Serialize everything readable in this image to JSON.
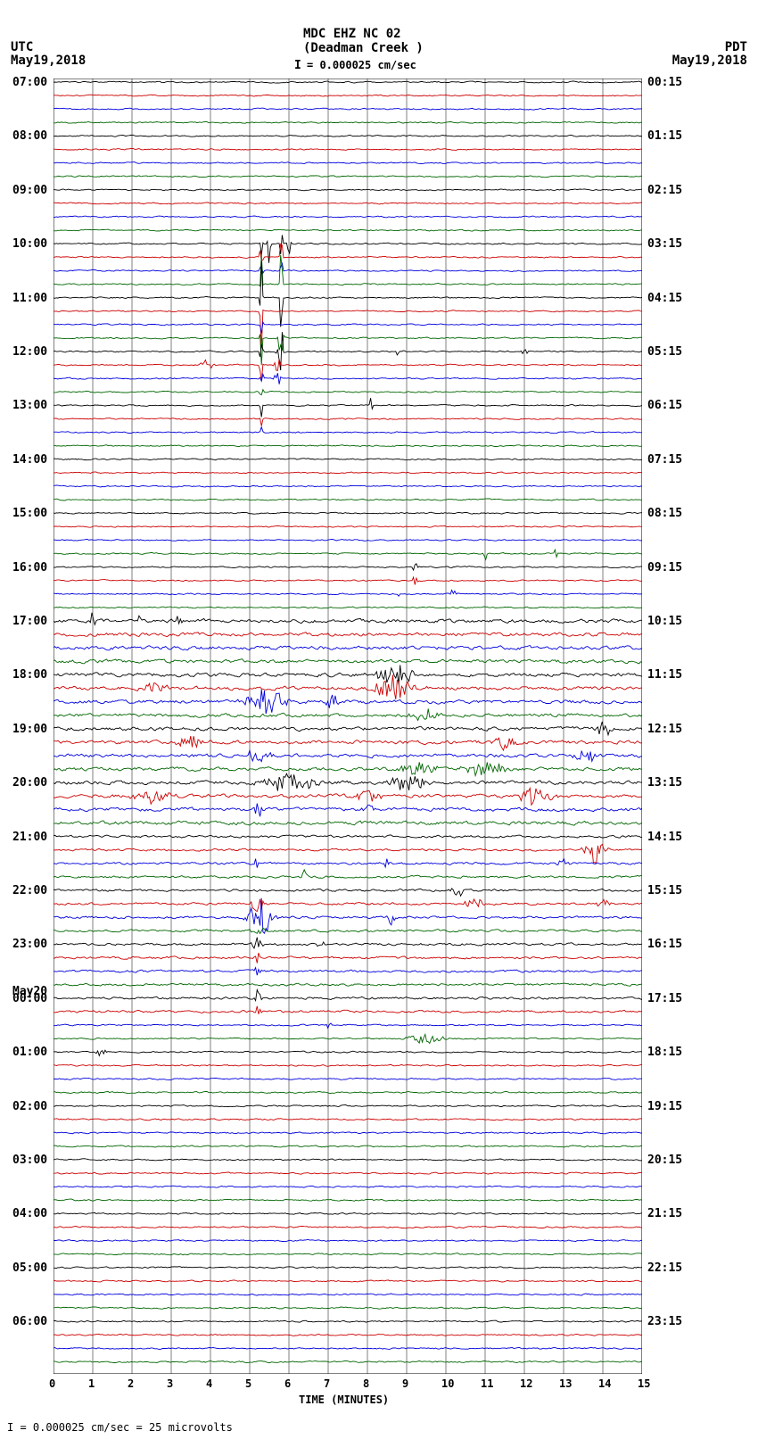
{
  "header": {
    "station": "MDC EHZ NC 02",
    "location": "(Deadman Creek )",
    "scale_marker": "I",
    "scale_text": "= 0.000025 cm/sec",
    "utc_label": "UTC",
    "utc_date": "May19,2018",
    "pdt_label": "PDT",
    "pdt_date": "May19,2018"
  },
  "footer": {
    "text": "I = 0.000025 cm/sec =    25 microvolts"
  },
  "plot": {
    "background": "#ffffff",
    "grid_color": "#000000",
    "grid_width": 0.5,
    "x_min": 0,
    "x_max": 15,
    "x_tick_step": 1,
    "x_label": "TIME (MINUTES)",
    "n_traces": 96,
    "trace_spacing": 15.1,
    "colors": [
      "#000000",
      "#cc0000",
      "#0000dd",
      "#006600"
    ],
    "trace_base_noise": 1.2,
    "left_labels": [
      {
        "row": 0,
        "text": "07:00"
      },
      {
        "row": 4,
        "text": "08:00"
      },
      {
        "row": 8,
        "text": "09:00"
      },
      {
        "row": 12,
        "text": "10:00"
      },
      {
        "row": 16,
        "text": "11:00"
      },
      {
        "row": 20,
        "text": "12:00"
      },
      {
        "row": 24,
        "text": "13:00"
      },
      {
        "row": 28,
        "text": "14:00"
      },
      {
        "row": 32,
        "text": "15:00"
      },
      {
        "row": 36,
        "text": "16:00"
      },
      {
        "row": 40,
        "text": "17:00"
      },
      {
        "row": 44,
        "text": "18:00"
      },
      {
        "row": 48,
        "text": "19:00"
      },
      {
        "row": 52,
        "text": "20:00"
      },
      {
        "row": 56,
        "text": "21:00"
      },
      {
        "row": 60,
        "text": "22:00"
      },
      {
        "row": 64,
        "text": "23:00"
      },
      {
        "row": 67.5,
        "text": "May20"
      },
      {
        "row": 68,
        "text": "00:00"
      },
      {
        "row": 72,
        "text": "01:00"
      },
      {
        "row": 76,
        "text": "02:00"
      },
      {
        "row": 80,
        "text": "03:00"
      },
      {
        "row": 84,
        "text": "04:00"
      },
      {
        "row": 88,
        "text": "05:00"
      },
      {
        "row": 92,
        "text": "06:00"
      }
    ],
    "right_labels": [
      {
        "row": 0,
        "text": "00:15"
      },
      {
        "row": 4,
        "text": "01:15"
      },
      {
        "row": 8,
        "text": "02:15"
      },
      {
        "row": 12,
        "text": "03:15"
      },
      {
        "row": 16,
        "text": "04:15"
      },
      {
        "row": 20,
        "text": "05:15"
      },
      {
        "row": 24,
        "text": "06:15"
      },
      {
        "row": 28,
        "text": "07:15"
      },
      {
        "row": 32,
        "text": "08:15"
      },
      {
        "row": 36,
        "text": "09:15"
      },
      {
        "row": 40,
        "text": "10:15"
      },
      {
        "row": 44,
        "text": "11:15"
      },
      {
        "row": 48,
        "text": "12:15"
      },
      {
        "row": 52,
        "text": "13:15"
      },
      {
        "row": 56,
        "text": "14:15"
      },
      {
        "row": 60,
        "text": "15:15"
      },
      {
        "row": 64,
        "text": "16:15"
      },
      {
        "row": 68,
        "text": "17:15"
      },
      {
        "row": 72,
        "text": "18:15"
      },
      {
        "row": 76,
        "text": "19:15"
      },
      {
        "row": 80,
        "text": "20:15"
      },
      {
        "row": 84,
        "text": "21:15"
      },
      {
        "row": 88,
        "text": "22:15"
      },
      {
        "row": 92,
        "text": "23:15"
      }
    ],
    "noise_ranges": [
      {
        "start": 0,
        "end": 40,
        "level": 1.2
      },
      {
        "start": 40,
        "end": 56,
        "level": 3.0
      },
      {
        "start": 56,
        "end": 70,
        "level": 2.0
      },
      {
        "start": 70,
        "end": 96,
        "level": 1.3
      }
    ],
    "events": [
      {
        "trace": 12,
        "x": 5.3,
        "amp": 50,
        "width": 0.02
      },
      {
        "trace": 12,
        "x": 5.5,
        "amp": 50,
        "width": 0.02
      },
      {
        "trace": 12,
        "x": 5.8,
        "amp": 60,
        "width": 0.02
      },
      {
        "trace": 12,
        "x": 6.0,
        "amp": 65,
        "width": 0.02
      },
      {
        "trace": 13,
        "x": 5.3,
        "amp": 50,
        "width": 0.02
      },
      {
        "trace": 13,
        "x": 5.8,
        "amp": 55,
        "width": 0.02
      },
      {
        "trace": 14,
        "x": 5.3,
        "amp": 45,
        "width": 0.02
      },
      {
        "trace": 14,
        "x": 5.8,
        "amp": 50,
        "width": 0.02
      },
      {
        "trace": 15,
        "x": 5.3,
        "amp": 40,
        "width": 0.02
      },
      {
        "trace": 15,
        "x": 5.8,
        "amp": 45,
        "width": 0.02
      },
      {
        "trace": 16,
        "x": 5.3,
        "amp": 50,
        "width": 0.02
      },
      {
        "trace": 16,
        "x": 5.8,
        "amp": 55,
        "width": 0.02
      },
      {
        "trace": 17,
        "x": 5.3,
        "amp": 45,
        "width": 0.02
      },
      {
        "trace": 18,
        "x": 5.3,
        "amp": 35,
        "width": 0.02
      },
      {
        "trace": 19,
        "x": 5.3,
        "amp": 35,
        "width": 0.02
      },
      {
        "trace": 19,
        "x": 5.8,
        "amp": 25,
        "width": 0.05
      },
      {
        "trace": 20,
        "x": 5.3,
        "amp": 35,
        "width": 0.02
      },
      {
        "trace": 20,
        "x": 5.8,
        "amp": 30,
        "width": 0.05
      },
      {
        "trace": 20,
        "x": 8.8,
        "amp": 6,
        "width": 0.05
      },
      {
        "trace": 20,
        "x": 12.0,
        "amp": 8,
        "width": 0.04
      },
      {
        "trace": 21,
        "x": 3.9,
        "amp": 8,
        "width": 0.1
      },
      {
        "trace": 21,
        "x": 5.3,
        "amp": 30,
        "width": 0.02
      },
      {
        "trace": 21,
        "x": 5.7,
        "amp": 20,
        "width": 0.04
      },
      {
        "trace": 22,
        "x": 5.3,
        "amp": 30,
        "width": 0.02
      },
      {
        "trace": 22,
        "x": 5.7,
        "amp": 15,
        "width": 0.05
      },
      {
        "trace": 23,
        "x": 5.3,
        "amp": 20,
        "width": 0.02
      },
      {
        "trace": 24,
        "x": 5.3,
        "amp": 15,
        "width": 0.02
      },
      {
        "trace": 24,
        "x": 8.1,
        "amp": 12,
        "width": 0.03
      },
      {
        "trace": 25,
        "x": 5.3,
        "amp": 12,
        "width": 0.02
      },
      {
        "trace": 26,
        "x": 5.3,
        "amp": 10,
        "width": 0.02
      },
      {
        "trace": 35,
        "x": 11.0,
        "amp": 12,
        "width": 0.03
      },
      {
        "trace": 35,
        "x": 12.8,
        "amp": 14,
        "width": 0.03
      },
      {
        "trace": 36,
        "x": 9.2,
        "amp": 6,
        "width": 0.05
      },
      {
        "trace": 37,
        "x": 9.2,
        "amp": 6,
        "width": 0.05
      },
      {
        "trace": 38,
        "x": 8.8,
        "amp": 8,
        "width": 0.04
      },
      {
        "trace": 38,
        "x": 10.2,
        "amp": 10,
        "width": 0.04
      },
      {
        "trace": 40,
        "x": 1.0,
        "amp": 16,
        "width": 0.04
      },
      {
        "trace": 40,
        "x": 2.2,
        "amp": 6,
        "width": 0.05
      },
      {
        "trace": 40,
        "x": 3.2,
        "amp": 10,
        "width": 0.04
      },
      {
        "trace": 44,
        "x": 8.7,
        "amp": 12,
        "width": 0.3
      },
      {
        "trace": 45,
        "x": 2.6,
        "amp": 8,
        "width": 0.2
      },
      {
        "trace": 45,
        "x": 8.7,
        "amp": 16,
        "width": 0.3
      },
      {
        "trace": 46,
        "x": 5.4,
        "amp": 18,
        "width": 0.3
      },
      {
        "trace": 46,
        "x": 7.1,
        "amp": 10,
        "width": 0.1
      },
      {
        "trace": 47,
        "x": 9.5,
        "amp": 8,
        "width": 0.2
      },
      {
        "trace": 48,
        "x": 14.0,
        "amp": 10,
        "width": 0.15
      },
      {
        "trace": 49,
        "x": 3.5,
        "amp": 8,
        "width": 0.2
      },
      {
        "trace": 49,
        "x": 11.5,
        "amp": 8,
        "width": 0.15
      },
      {
        "trace": 50,
        "x": 5.2,
        "amp": 8,
        "width": 0.2
      },
      {
        "trace": 50,
        "x": 13.5,
        "amp": 12,
        "width": 0.2
      },
      {
        "trace": 51,
        "x": 9.3,
        "amp": 10,
        "width": 0.3
      },
      {
        "trace": 51,
        "x": 11.0,
        "amp": 10,
        "width": 0.3
      },
      {
        "trace": 52,
        "x": 6.0,
        "amp": 10,
        "width": 0.5
      },
      {
        "trace": 52,
        "x": 9.0,
        "amp": 10,
        "width": 0.3
      },
      {
        "trace": 53,
        "x": 2.5,
        "amp": 8,
        "width": 0.3
      },
      {
        "trace": 53,
        "x": 8.0,
        "amp": 8,
        "width": 0.2
      },
      {
        "trace": 53,
        "x": 12.3,
        "amp": 10,
        "width": 0.3
      },
      {
        "trace": 54,
        "x": 5.2,
        "amp": 12,
        "width": 0.1
      },
      {
        "trace": 54,
        "x": 8.0,
        "amp": 8,
        "width": 0.1
      },
      {
        "trace": 57,
        "x": 13.8,
        "amp": 18,
        "width": 0.15
      },
      {
        "trace": 58,
        "x": 5.2,
        "amp": 8,
        "width": 0.05
      },
      {
        "trace": 58,
        "x": 8.5,
        "amp": 8,
        "width": 0.05
      },
      {
        "trace": 58,
        "x": 13.0,
        "amp": 14,
        "width": 0.08
      },
      {
        "trace": 59,
        "x": 6.4,
        "amp": 8,
        "width": 0.05
      },
      {
        "trace": 60,
        "x": 10.3,
        "amp": 8,
        "width": 0.1
      },
      {
        "trace": 61,
        "x": 5.2,
        "amp": 14,
        "width": 0.1
      },
      {
        "trace": 61,
        "x": 10.7,
        "amp": 8,
        "width": 0.15
      },
      {
        "trace": 61,
        "x": 14.0,
        "amp": 8,
        "width": 0.1
      },
      {
        "trace": 62,
        "x": 5.3,
        "amp": 24,
        "width": 0.2
      },
      {
        "trace": 62,
        "x": 8.6,
        "amp": 10,
        "width": 0.05
      },
      {
        "trace": 63,
        "x": 5.2,
        "amp": 8,
        "width": 0.1
      },
      {
        "trace": 64,
        "x": 5.2,
        "amp": 10,
        "width": 0.08
      },
      {
        "trace": 64,
        "x": 6.8,
        "amp": 8,
        "width": 0.05
      },
      {
        "trace": 65,
        "x": 5.2,
        "amp": 8,
        "width": 0.05
      },
      {
        "trace": 66,
        "x": 5.2,
        "amp": 8,
        "width": 0.05
      },
      {
        "trace": 68,
        "x": 5.2,
        "amp": 12,
        "width": 0.05
      },
      {
        "trace": 69,
        "x": 5.2,
        "amp": 8,
        "width": 0.05
      },
      {
        "trace": 70,
        "x": 7.0,
        "amp": 8,
        "width": 0.04
      },
      {
        "trace": 71,
        "x": 9.5,
        "amp": 6,
        "width": 0.3
      },
      {
        "trace": 72,
        "x": 1.2,
        "amp": 8,
        "width": 0.08
      }
    ]
  }
}
